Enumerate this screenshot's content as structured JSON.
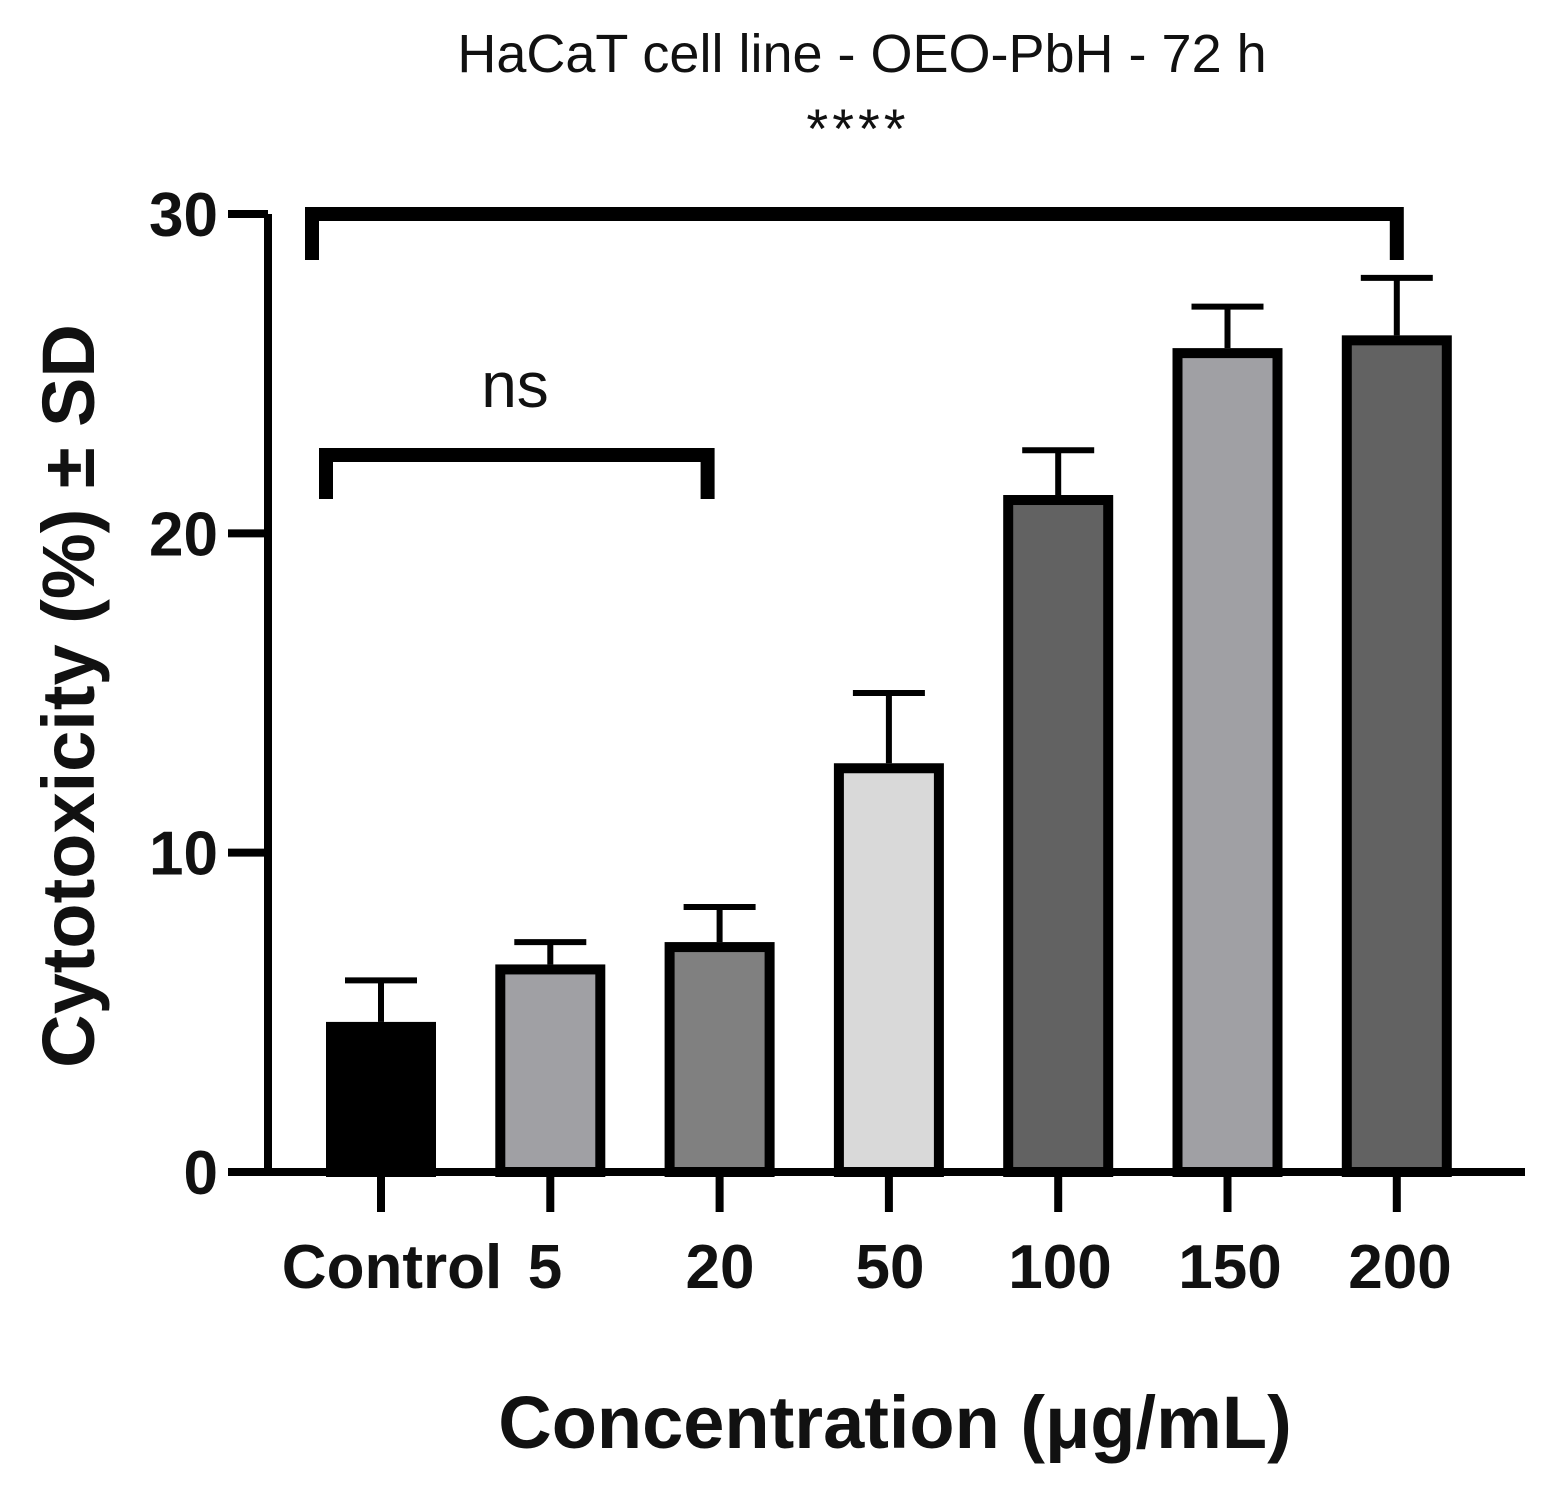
{
  "chart_data": {
    "type": "bar",
    "title": "HaCaT cell line - OEO-PbH - 72 h",
    "xlabel": "Concentration (μg/mL)",
    "ylabel": "Cytotoxicity (%) ± SD",
    "categories": [
      "Control",
      "5",
      "20",
      "50",
      "100",
      "150",
      "200"
    ],
    "values": [
      4.7,
      6.5,
      7.2,
      12.8,
      21.2,
      25.8,
      26.2
    ],
    "errors": [
      1.3,
      0.7,
      1.1,
      2.2,
      1.4,
      1.3,
      1.8
    ],
    "colors": [
      "#000000",
      "#a0a0a4",
      "#808080",
      "#d9d9d9",
      "#626262",
      "#a0a0a4",
      "#626262"
    ],
    "ylim": [
      0,
      30
    ],
    "yticks": [
      0,
      10,
      20,
      30
    ],
    "grid": false,
    "significance": [
      {
        "label": "****",
        "from": "Control",
        "to": "200"
      },
      {
        "label": "ns",
        "from": "Control",
        "to": "20"
      }
    ]
  }
}
